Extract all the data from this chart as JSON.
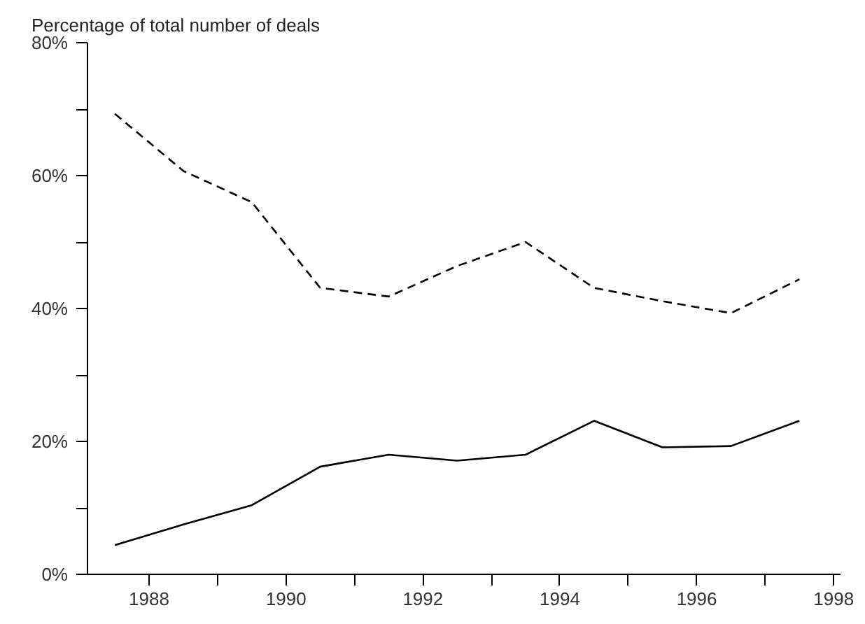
{
  "chart_data": {
    "type": "line",
    "title": "Percentage of total number of deals",
    "xlim": [
      1987.1,
      1998.1
    ],
    "ylim": [
      0,
      80
    ],
    "xticks": [
      1988,
      {
        "value": 1989,
        "label": null
      },
      1990,
      {
        "value": 1991,
        "label": null
      },
      1992,
      {
        "value": 1993,
        "label": null
      },
      1994,
      {
        "value": 1995,
        "label": null
      },
      1996,
      {
        "value": 1997,
        "label": null
      },
      1998
    ],
    "yticks": [
      {
        "value": 0,
        "label": "0%"
      },
      {
        "value": 10,
        "label": null
      },
      {
        "value": 20,
        "label": "20%"
      },
      {
        "value": 30,
        "label": null
      },
      {
        "value": 40,
        "label": "40%"
      },
      {
        "value": 50,
        "label": null
      },
      {
        "value": 60,
        "label": "60%"
      },
      {
        "value": 70,
        "label": null
      },
      {
        "value": 80,
        "label": "80%"
      }
    ],
    "x": [
      1987.5,
      1988.5,
      1989.5,
      1990.5,
      1991.5,
      1992.5,
      1993.5,
      1994.5,
      1995.5,
      1996.5,
      1997.5
    ],
    "grid": false,
    "series": [
      {
        "color": "#000000",
        "line_style": "dashed",
        "values": [
          69.3,
          60.7,
          56,
          43.1,
          41.8,
          46.4,
          50,
          43.1,
          41.1,
          39.3,
          44.4
        ]
      },
      {
        "color": "#000000",
        "line_style": "solid",
        "values": [
          4.4,
          7.5,
          10.4,
          16.2,
          18,
          17.1,
          18,
          23.1,
          19.1,
          19.3,
          23.1
        ]
      }
    ]
  }
}
